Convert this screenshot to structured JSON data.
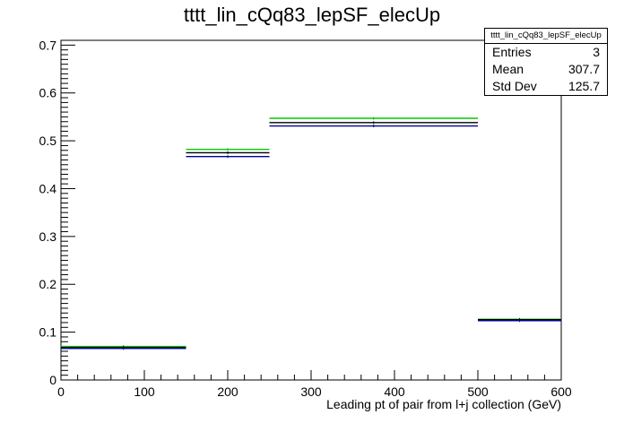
{
  "chart_data": {
    "type": "step",
    "title": "tttt_lin_cQq83_lepSF_elecUp",
    "xlabel": "Leading pt of pair from l+j collection (GeV)",
    "ylabel": "",
    "xlim": [
      0,
      600
    ],
    "ylim": [
      0,
      0.71
    ],
    "bin_edges": [
      0,
      150,
      250,
      500,
      600
    ],
    "x_ticks": [
      0,
      100,
      200,
      300,
      400,
      500,
      600
    ],
    "y_ticks": [
      0,
      0.1,
      0.2,
      0.3,
      0.4,
      0.5,
      0.6,
      0.7
    ],
    "grid": false,
    "series": [
      {
        "color": "#00cc00",
        "values": [
          0.07,
          0.482,
          0.547,
          0.127
        ]
      },
      {
        "color": "#000000",
        "values": [
          0.068,
          0.475,
          0.538,
          0.126
        ]
      },
      {
        "color": "#000099",
        "values": [
          0.066,
          0.467,
          0.531,
          0.124
        ]
      }
    ],
    "stats": {
      "box_title": "tttt_lin_cQq83_lepSF_elecUp",
      "entries_label": "Entries",
      "entries": "3",
      "mean_label": "Mean",
      "mean": "307.7",
      "stddev_label": "Std Dev",
      "stddev": "125.7"
    }
  }
}
